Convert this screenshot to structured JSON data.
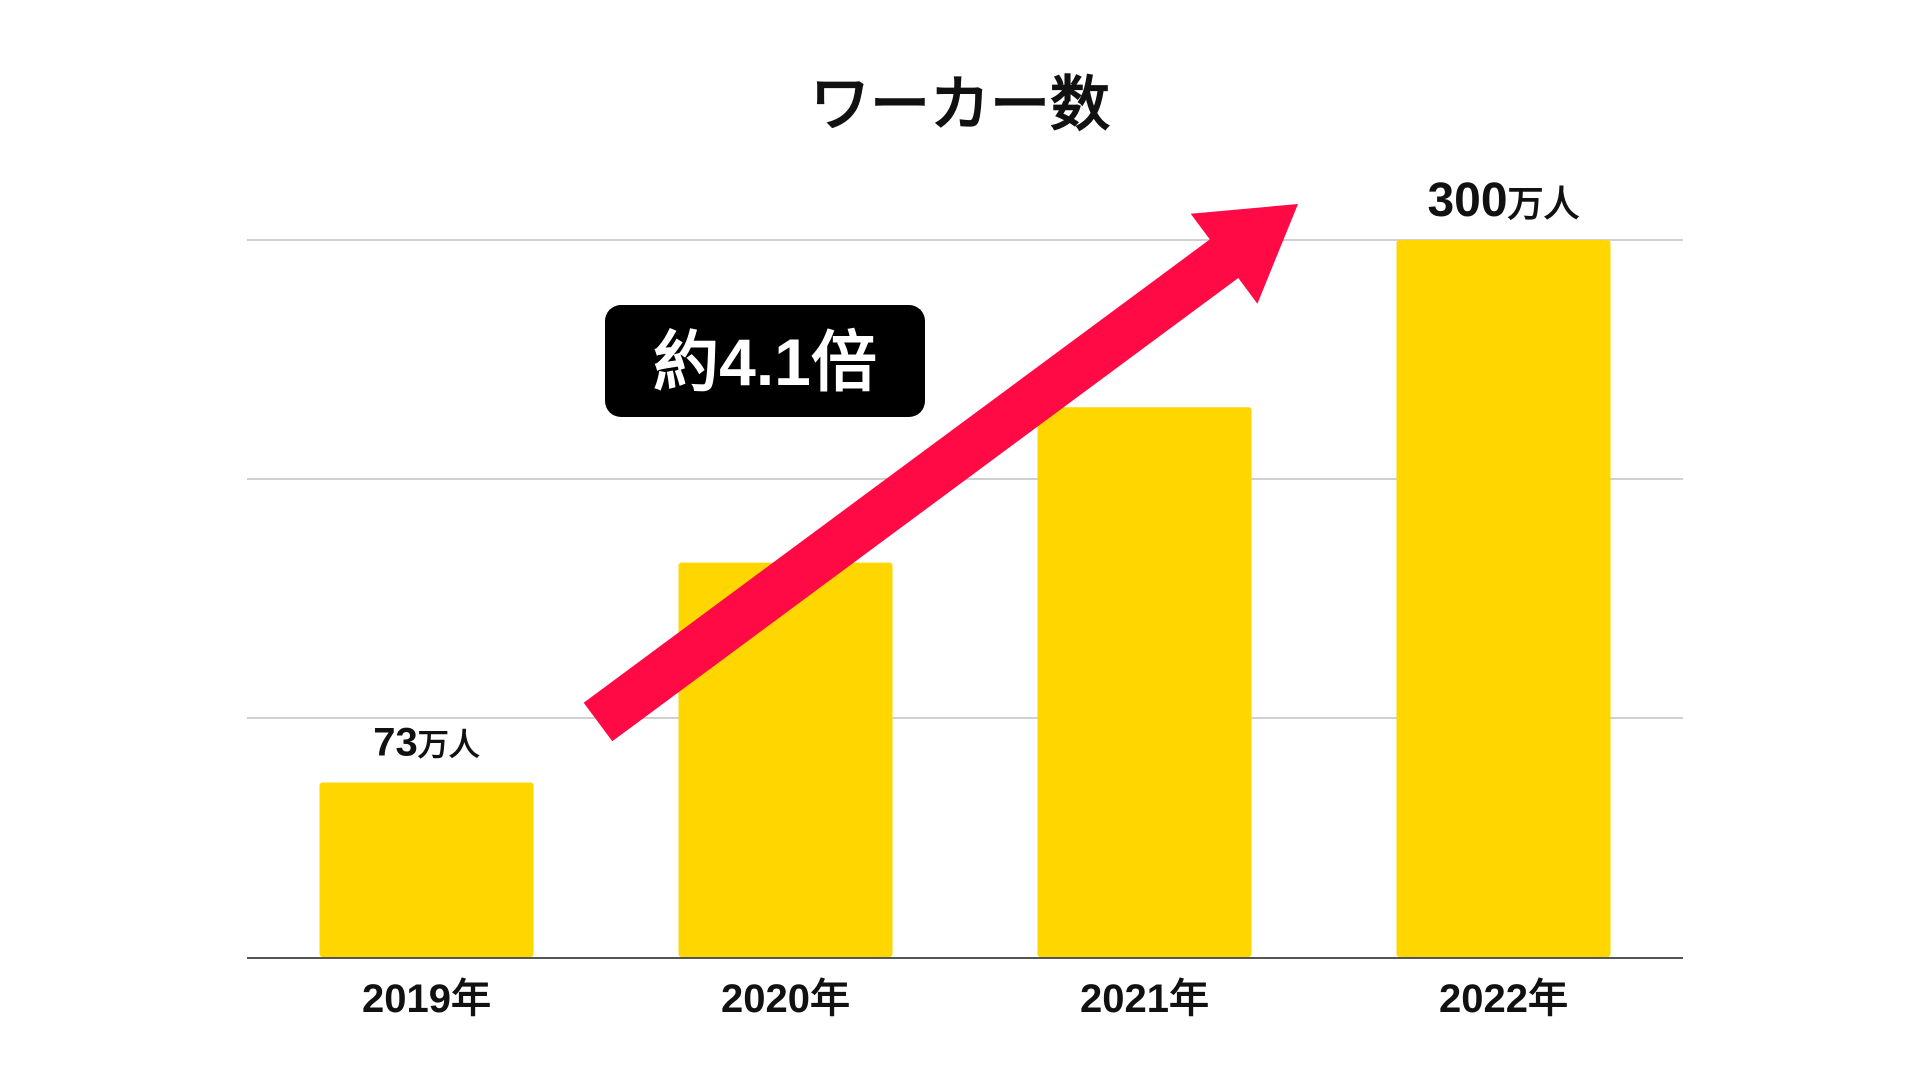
{
  "colors": {
    "bar": "#FFD600",
    "arrow": "#FF0A45",
    "callout_bg": "#000000",
    "callout_text": "#FFFFFF",
    "grid": "#D0D0D0",
    "axis": "#555555",
    "text": "#111111"
  },
  "chart_data": {
    "type": "bar",
    "title": "ワーカー数",
    "categories": [
      "2019年",
      "2020年",
      "2021年",
      "2022年"
    ],
    "values": [
      73,
      165,
      230,
      300
    ],
    "unit": "万人",
    "ylim": [
      0,
      300
    ],
    "grid": true,
    "gridlines": [
      100,
      200,
      300
    ],
    "data_labels": [
      {
        "index": 0,
        "number": "73",
        "unit": "万人"
      },
      {
        "index": 3,
        "number": "300",
        "unit": "万人"
      }
    ],
    "annotations": [
      {
        "type": "arrow",
        "from_index": 0,
        "to_index": 3
      },
      {
        "type": "callout",
        "text": "約4.1倍"
      }
    ]
  }
}
